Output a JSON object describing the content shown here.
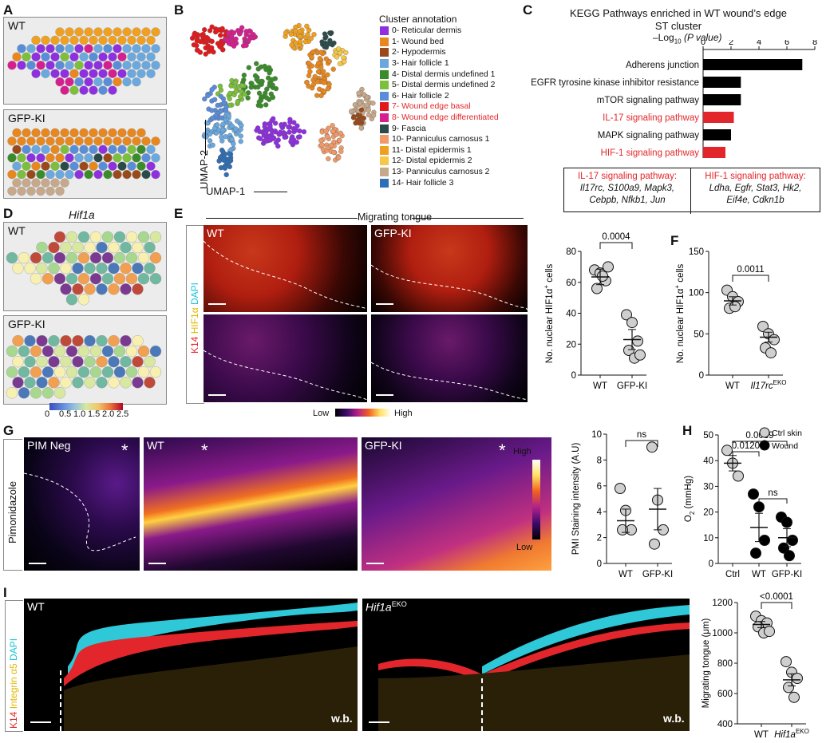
{
  "panels": {
    "A": {
      "label": "A",
      "top_genotype": "WT",
      "bottom_genotype": "GFP-KI"
    },
    "B": {
      "label": "B",
      "xlabel": "UMAP-1",
      "ylabel": "UMAP-2",
      "legend_title": "Cluster annotation",
      "clusters": [
        {
          "label": "0- Reticular dermis",
          "color": "#8e2fe0",
          "highlight": false
        },
        {
          "label": "1- Wound bed",
          "color": "#e8871e",
          "highlight": false
        },
        {
          "label": "2- Hypodermis",
          "color": "#9a4a1a",
          "highlight": false
        },
        {
          "label": "3- Hair follicle 1",
          "color": "#6aa8de",
          "highlight": false
        },
        {
          "label": "4- Distal dermis undefined 1",
          "color": "#3a8c2a",
          "highlight": false
        },
        {
          "label": "5- Distal dermis undefined 2",
          "color": "#7bbf3a",
          "highlight": false
        },
        {
          "label": "6- Hair follicle 2",
          "color": "#5a8dd8",
          "highlight": false
        },
        {
          "label": "7- Wound edge basal",
          "color": "#e31a1c",
          "highlight": true
        },
        {
          "label": "8- Wound edge differentiated",
          "color": "#d61f8f",
          "highlight": true
        },
        {
          "label": "9- Fascia",
          "color": "#2b4a4a",
          "highlight": false
        },
        {
          "label": "10- Panniculus carnosus 1",
          "color": "#f09a6a",
          "highlight": false
        },
        {
          "label": "11- Distal epidermis 1",
          "color": "#f0a020",
          "highlight": false
        },
        {
          "label": "12- Distal epidermis 2",
          "color": "#f5c84a",
          "highlight": false
        },
        {
          "label": "13- Panniculus carnosus 2",
          "color": "#c7a88a",
          "highlight": false
        },
        {
          "label": "14- Hair follicle 3",
          "color": "#2f6fb5",
          "highlight": false
        }
      ]
    },
    "C": {
      "label": "C",
      "title_line1": "KEGG Pathways enriched in WT wound’s edge",
      "title_line2": "ST cluster",
      "axis_label_prefix": "–Log",
      "axis_label_sub": "10",
      "axis_label_suffix": " (P value)",
      "box_left_title": "IL-17 signaling pathway:",
      "box_left_genes": [
        "Il17rc, S100a9, Mapk3,",
        "Cebpb, Nfkb1, Jun"
      ],
      "box_right_title": "HIF-1 signaling pathway:",
      "box_right_genes": [
        "Ldha, Egfr, Stat3, Hk2,",
        "Eif4e, Cdkn1b"
      ]
    },
    "D": {
      "label": "D",
      "title": "Hif1a",
      "top_genotype": "WT",
      "bottom_genotype": "GFP-KI",
      "colorbar_ticks": [
        "0",
        "0.5",
        "1.0",
        "1.5",
        "2.0",
        "2.5"
      ]
    },
    "E": {
      "label": "E",
      "header": "Migrating tongue",
      "img_left_label": "WT",
      "img_right_label": "GFP-KI",
      "stain_k14": "K14",
      "stain_hif": "HIF1α",
      "stain_dapi": "DAPI",
      "lut_low": "Low",
      "lut_high": "High"
    },
    "F": {
      "label": "F"
    },
    "G": {
      "label": "G",
      "side_label": "Pimonidazole",
      "img1_label": "PIM Neg",
      "img2_label": "WT",
      "img3_label": "GFP-KI",
      "asterisk": "*",
      "lut_high": "High",
      "lut_low": "Low"
    },
    "H": {
      "label": "H",
      "legend_ctrl": "Ctrl skin",
      "legend_wound": "Wound"
    },
    "I": {
      "label": "I",
      "img1_label": "WT",
      "img2_label_main": "Hif1a",
      "img2_label_sup": "EKO",
      "wb_label": "w.b.",
      "stain_k14": "K14",
      "stain_itg": "Integrin α5",
      "stain_dapi": "DAPI"
    }
  },
  "chart_data": [
    {
      "id": "C",
      "type": "bar",
      "orientation": "horizontal",
      "categories": [
        "Adherens junction",
        "EGFR tyrosine kinase inhibitor resistance",
        "mTOR signaling pathway",
        "IL-17 signaling pathway",
        "MAPK signaling pathway",
        "HIF-1 signaling pathway"
      ],
      "values": [
        7.1,
        2.7,
        2.7,
        2.2,
        2.0,
        1.6
      ],
      "bar_colors": [
        "#000000",
        "#000000",
        "#000000",
        "#e3262b",
        "#000000",
        "#e3262b"
      ],
      "label_colors": [
        "#111111",
        "#111111",
        "#111111",
        "#e3262b",
        "#111111",
        "#e3262b"
      ],
      "xlim": [
        0,
        8
      ],
      "xticks": [
        "0",
        "2",
        "4",
        "6",
        "8"
      ]
    },
    {
      "id": "E-quant",
      "type": "scatter",
      "ylabel_prefix": "No. nuclear HIF1α",
      "ylabel_sup": "+",
      "ylabel_suffix": " cells",
      "ylim": [
        0,
        80
      ],
      "yticks": [
        "0",
        "20",
        "40",
        "60",
        "80"
      ],
      "groups": [
        {
          "name": "WT",
          "sup": "",
          "values": [
            68,
            66,
            61,
            56,
            64,
            70
          ],
          "mean": 63.5,
          "sem": 5
        },
        {
          "name": "GFP-KI",
          "sup": "",
          "values": [
            39,
            34,
            22,
            16,
            11,
            13
          ],
          "mean": 23,
          "sem": 6.5
        }
      ],
      "pvalue": "0.0004"
    },
    {
      "id": "F",
      "type": "scatter",
      "ylabel_prefix": "No. nuclear HIF1α",
      "ylabel_sup": "+",
      "ylabel_suffix": " cells",
      "ylim": [
        0,
        150
      ],
      "yticks": [
        "0",
        "50",
        "100",
        "150"
      ],
      "groups": [
        {
          "name": "WT",
          "sup": "",
          "values": [
            103,
            95,
            89,
            81,
            83
          ],
          "mean": 90,
          "sem": 5
        },
        {
          "name": "Il17rc",
          "sup": "EKO",
          "values": [
            59,
            50,
            43,
            33,
            27
          ],
          "mean": 46,
          "sem": 6
        }
      ],
      "pvalue": "0.0011"
    },
    {
      "id": "G-quant",
      "type": "scatter",
      "ylabel": "PMI Staining intensity (A.U)",
      "ylim": [
        0,
        10
      ],
      "yticks": [
        "0",
        "2",
        "4",
        "6",
        "8",
        "10"
      ],
      "groups": [
        {
          "name": "WT",
          "sup": "",
          "values": [
            5.8,
            4.1,
            2.6,
            2.6
          ],
          "mean": 3.3,
          "sem": 0.9
        },
        {
          "name": "GFP-KI",
          "sup": "",
          "values": [
            9.0,
            4.9,
            2.6,
            1.5
          ],
          "mean": 4.2,
          "sem": 1.6
        }
      ],
      "pvalue": "ns"
    },
    {
      "id": "H",
      "type": "scatter",
      "ylabel_prefix": "O",
      "ylabel_sub": "2",
      "ylabel_suffix": " (mmHg)",
      "ylim": [
        0,
        50
      ],
      "yticks": [
        "0",
        "10",
        "20",
        "30",
        "40",
        "50"
      ],
      "groups": [
        {
          "name": "Ctrl",
          "sup": "",
          "fill": "#cfcfcf",
          "values": [
            44,
            39,
            34
          ],
          "mean": 39,
          "sem": 3
        },
        {
          "name": "WT",
          "sup": "",
          "fill": "#000000",
          "values": [
            27,
            22,
            9,
            4
          ],
          "mean": 14,
          "sem": 5.5
        },
        {
          "name": "GFP-KI",
          "sup": "",
          "fill": "#000000",
          "values": [
            18,
            16,
            9,
            6,
            3
          ],
          "mean": 10,
          "sem": 3.5
        }
      ],
      "comparisons": [
        {
          "label": "0.0120",
          "from": 0,
          "to": 1
        },
        {
          "label": "0.0039",
          "from": 0,
          "to": 2
        },
        {
          "label": "ns",
          "from": 1,
          "to": 2
        }
      ]
    },
    {
      "id": "I-quant",
      "type": "scatter",
      "ylabel": "Migrating tongue (μm)",
      "ylim": [
        400,
        1200
      ],
      "yticks": [
        "400",
        "600",
        "800",
        "1000",
        "1200"
      ],
      "groups": [
        {
          "name": "WT",
          "sup": "",
          "values": [
            1110,
            1080,
            1065,
            1040,
            1000,
            1010
          ],
          "mean": 1055,
          "sem": 20
        },
        {
          "name": "Hif1a",
          "sup": "EKO",
          "values": [
            810,
            740,
            700,
            640,
            575
          ],
          "mean": 690,
          "sem": 40
        }
      ],
      "pvalue": "<0.0001"
    }
  ]
}
